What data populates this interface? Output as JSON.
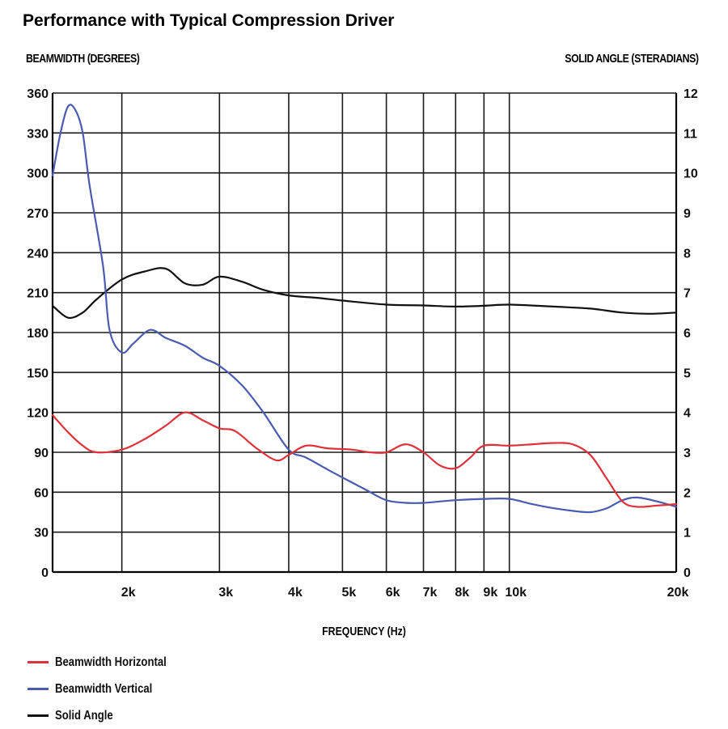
{
  "chart_data": {
    "type": "line",
    "title": "Performance with Typical Compression Driver",
    "xlabel": "FREQUENCY (Hz)",
    "ylabel": "BEAMWIDTH (DEGREES)",
    "y2label": "SOLID ANGLE (STERADIANS)",
    "xscale": "log",
    "xlim": [
      1500,
      20000
    ],
    "ylim": [
      0,
      360
    ],
    "y2lim": [
      0,
      12
    ],
    "grid": true,
    "legend_position": "bottom-left",
    "x_ticks": [
      {
        "value": 2000,
        "label": "2k"
      },
      {
        "value": 3000,
        "label": "3k"
      },
      {
        "value": 4000,
        "label": "4k"
      },
      {
        "value": 5000,
        "label": "5k"
      },
      {
        "value": 6000,
        "label": "6k"
      },
      {
        "value": 7000,
        "label": "7k"
      },
      {
        "value": 8000,
        "label": "8k"
      },
      {
        "value": 9000,
        "label": "9k"
      },
      {
        "value": 10000,
        "label": "10k"
      },
      {
        "value": 20000,
        "label": "20k"
      }
    ],
    "y_ticks": [
      0,
      30,
      60,
      90,
      120,
      150,
      180,
      210,
      240,
      270,
      300,
      330,
      360
    ],
    "y2_ticks": [
      0,
      1,
      2,
      3,
      4,
      5,
      6,
      7,
      8,
      9,
      10,
      11,
      12
    ],
    "series": [
      {
        "name": "Beamwidth Horizontal",
        "color": "#e0313a",
        "axis": "left",
        "points": [
          [
            1500,
            118
          ],
          [
            1600,
            105
          ],
          [
            1700,
            95
          ],
          [
            1800,
            90
          ],
          [
            2000,
            92
          ],
          [
            2200,
            100
          ],
          [
            2400,
            110
          ],
          [
            2600,
            120
          ],
          [
            2800,
            114
          ],
          [
            3000,
            108
          ],
          [
            3200,
            106
          ],
          [
            3500,
            93
          ],
          [
            3800,
            84
          ],
          [
            4000,
            88
          ],
          [
            4300,
            95
          ],
          [
            4700,
            93
          ],
          [
            5200,
            92
          ],
          [
            5600,
            90
          ],
          [
            6000,
            90
          ],
          [
            6500,
            96
          ],
          [
            7000,
            90
          ],
          [
            7500,
            80
          ],
          [
            8000,
            78
          ],
          [
            8500,
            86
          ],
          [
            9000,
            95
          ],
          [
            10000,
            95
          ],
          [
            11000,
            96
          ],
          [
            12000,
            97
          ],
          [
            13000,
            96
          ],
          [
            14000,
            88
          ],
          [
            15000,
            70
          ],
          [
            16000,
            53
          ],
          [
            17000,
            49
          ],
          [
            18500,
            50
          ],
          [
            20000,
            51
          ]
        ]
      },
      {
        "name": "Beamwidth Vertical",
        "color": "#4a5bb0",
        "axis": "left",
        "points": [
          [
            1500,
            298
          ],
          [
            1550,
            330
          ],
          [
            1600,
            350
          ],
          [
            1650,
            347
          ],
          [
            1700,
            330
          ],
          [
            1750,
            290
          ],
          [
            1850,
            230
          ],
          [
            1900,
            182
          ],
          [
            2000,
            165
          ],
          [
            2100,
            172
          ],
          [
            2250,
            182
          ],
          [
            2400,
            176
          ],
          [
            2600,
            170
          ],
          [
            2800,
            161
          ],
          [
            3000,
            155
          ],
          [
            3300,
            140
          ],
          [
            3600,
            120
          ],
          [
            4000,
            92
          ],
          [
            4300,
            86
          ],
          [
            4800,
            75
          ],
          [
            5500,
            62
          ],
          [
            6000,
            54
          ],
          [
            6500,
            52
          ],
          [
            7000,
            52
          ],
          [
            8000,
            54
          ],
          [
            9000,
            55
          ],
          [
            10000,
            55
          ],
          [
            11000,
            51
          ],
          [
            12000,
            48
          ],
          [
            13000,
            46
          ],
          [
            14000,
            45
          ],
          [
            15000,
            48
          ],
          [
            16000,
            54
          ],
          [
            17000,
            56
          ],
          [
            18500,
            53
          ],
          [
            20000,
            49
          ]
        ]
      },
      {
        "name": "Solid Angle",
        "color": "#111111",
        "axis": "right",
        "points": [
          [
            1500,
            6.67
          ],
          [
            1600,
            6.37
          ],
          [
            1700,
            6.5
          ],
          [
            1800,
            6.83
          ],
          [
            2000,
            7.33
          ],
          [
            2200,
            7.53
          ],
          [
            2400,
            7.6
          ],
          [
            2600,
            7.23
          ],
          [
            2800,
            7.2
          ],
          [
            3000,
            7.4
          ],
          [
            3300,
            7.27
          ],
          [
            3600,
            7.07
          ],
          [
            4000,
            6.93
          ],
          [
            4500,
            6.87
          ],
          [
            5000,
            6.8
          ],
          [
            6000,
            6.7
          ],
          [
            7000,
            6.68
          ],
          [
            8000,
            6.65
          ],
          [
            9000,
            6.67
          ],
          [
            10000,
            6.7
          ],
          [
            12000,
            6.65
          ],
          [
            14000,
            6.6
          ],
          [
            16000,
            6.5
          ],
          [
            18000,
            6.47
          ],
          [
            20000,
            6.5
          ]
        ]
      }
    ]
  }
}
